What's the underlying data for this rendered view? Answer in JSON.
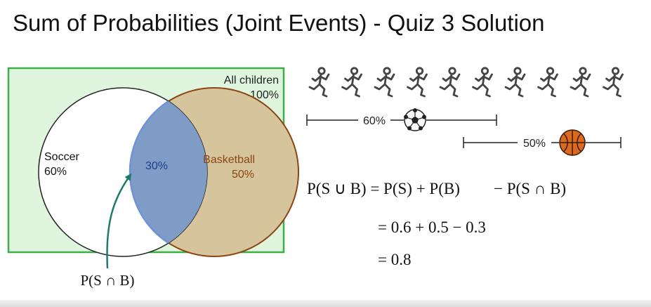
{
  "title": "Sum of Probabilities (Joint Events) - Quiz 3 Solution",
  "venn": {
    "universe_label": "All children",
    "universe_pct": "100%",
    "soccer_label": "Soccer",
    "soccer_pct": "60%",
    "basketball_label": "Basketball",
    "basketball_pct": "50%",
    "overlap_pct": "30%",
    "pointer_label": "P(S ∩ B)"
  },
  "bars": {
    "soccer_pct": "60%",
    "basketball_pct": "50%",
    "children_count": 10
  },
  "equations": {
    "line1_lhs": "P(S ∪ B) = P(S) + P(B)",
    "line1_rhs": "− P(S ∩ B)",
    "line2": "= 0.6 + 0.5 − 0.3",
    "line3": "= 0.8"
  },
  "colors": {
    "universe_fill": "#dff5de",
    "universe_stroke": "#3fae48",
    "basketball_fill": "#d6c49c",
    "basketball_stroke": "#8b4513",
    "overlap_fill": "#7f9cc6",
    "overlap_stroke": "#6f93d6",
    "arrow": "#1f7a6a",
    "ball_orange": "#d96a1f"
  }
}
